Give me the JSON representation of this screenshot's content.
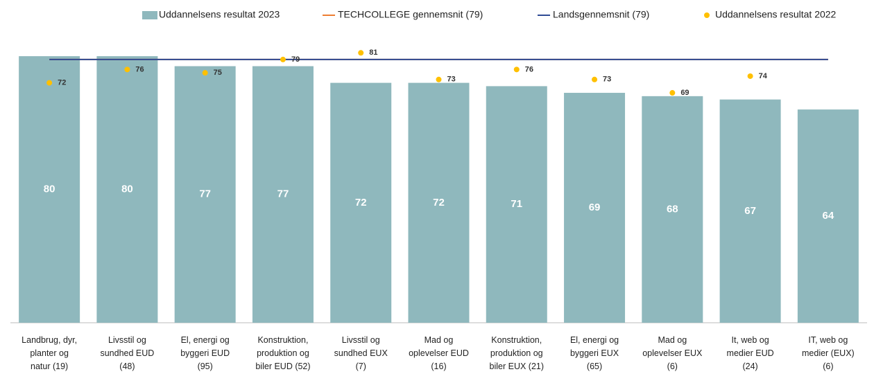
{
  "chart_data": {
    "type": "bar",
    "categories": [
      [
        "Landbrug, dyr,",
        "planter og",
        "natur (19)"
      ],
      [
        "Livsstil og",
        "sundhed EUD",
        "(48)"
      ],
      [
        "El, energi og",
        "byggeri EUD",
        "(95)"
      ],
      [
        "Konstruktion,",
        "produktion og",
        "biler EUD (52)"
      ],
      [
        "Livsstil og",
        "sundhed EUX",
        "(7)"
      ],
      [
        "Mad og",
        "oplevelser EUD",
        "(16)"
      ],
      [
        "Konstruktion,",
        "produktion og",
        "biler EUX (21)"
      ],
      [
        "El, energi og",
        "byggeri EUX",
        "(65)"
      ],
      [
        "Mad og",
        "oplevelser EUX",
        "(6)"
      ],
      [
        "It, web og",
        "medier EUD",
        "(24)"
      ],
      [
        "IT, web og",
        "medier (EUX)",
        "(6)"
      ]
    ],
    "series": [
      {
        "name": "Uddannelsens resultat 2023",
        "type": "bar",
        "color": "#8fb8bd",
        "values": [
          80,
          80,
          77,
          77,
          72,
          72,
          71,
          69,
          68,
          67,
          64
        ]
      },
      {
        "name": "TECHCOLLEGE gennemsnit (79)",
        "type": "line",
        "color": "#ed7d31",
        "values": [
          79,
          79,
          79,
          79,
          79,
          79,
          79,
          79,
          79,
          79,
          79
        ]
      },
      {
        "name": "Landsgennemsnit (79)",
        "type": "line",
        "color": "#2e4a94",
        "values": [
          79,
          79,
          79,
          79,
          79,
          79,
          79,
          79,
          79,
          79,
          79
        ]
      },
      {
        "name": "Uddannelsens resultat 2022",
        "type": "scatter",
        "color": "#ffc000",
        "values": [
          72,
          76,
          75,
          79,
          81,
          73,
          76,
          73,
          69,
          74,
          null
        ]
      }
    ],
    "ylim": [
      0,
      90
    ]
  }
}
